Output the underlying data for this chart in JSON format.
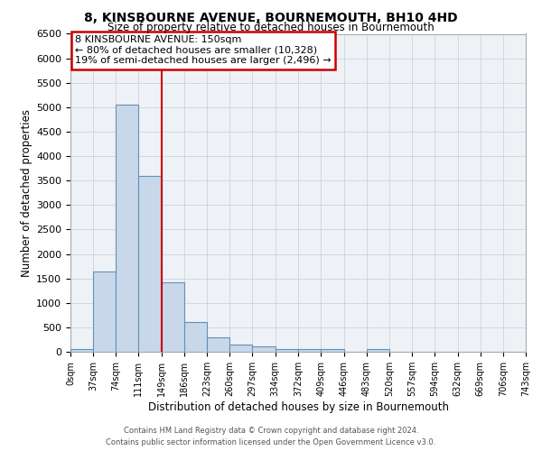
{
  "title": "8, KINSBOURNE AVENUE, BOURNEMOUTH, BH10 4HD",
  "subtitle": "Size of property relative to detached houses in Bournemouth",
  "xlabel": "Distribution of detached houses by size in Bournemouth",
  "ylabel": "Number of detached properties",
  "bar_color": "#c8d8ea",
  "bar_edge_color": "#6090b8",
  "bin_edges": [
    0,
    37,
    74,
    111,
    149,
    186,
    223,
    260,
    297,
    334,
    372,
    409,
    446,
    483,
    520,
    557,
    594,
    632,
    669,
    706,
    743
  ],
  "bin_labels": [
    "0sqm",
    "37sqm",
    "74sqm",
    "111sqm",
    "149sqm",
    "186sqm",
    "223sqm",
    "260sqm",
    "297sqm",
    "334sqm",
    "372sqm",
    "409sqm",
    "446sqm",
    "483sqm",
    "520sqm",
    "557sqm",
    "594sqm",
    "632sqm",
    "669sqm",
    "706sqm",
    "743sqm"
  ],
  "bar_heights": [
    50,
    1650,
    5050,
    3600,
    1420,
    600,
    290,
    145,
    110,
    55,
    55,
    55,
    0,
    50,
    0,
    0,
    0,
    0,
    0,
    0
  ],
  "ylim": [
    0,
    6500
  ],
  "yticks": [
    0,
    500,
    1000,
    1500,
    2000,
    2500,
    3000,
    3500,
    4000,
    4500,
    5000,
    5500,
    6000,
    6500
  ],
  "property_line_x": 149,
  "property_line_color": "#cc0000",
  "annotation_line1": "8 KINSBOURNE AVENUE: 150sqm",
  "annotation_line2": "← 80% of detached houses are smaller (10,328)",
  "annotation_line3": "19% of semi-detached houses are larger (2,496) →",
  "annotation_box_edge_color": "#cc0000",
  "footer_line1": "Contains HM Land Registry data © Crown copyright and database right 2024.",
  "footer_line2": "Contains public sector information licensed under the Open Government Licence v3.0.",
  "plot_bg_color": "#eef2f7",
  "grid_color": "#c8ccd4"
}
